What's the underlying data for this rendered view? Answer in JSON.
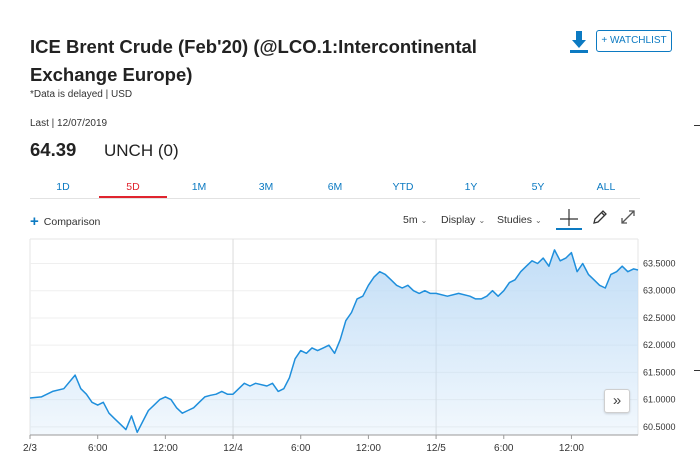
{
  "header": {
    "title": "ICE Brent Crude (Feb'20) (@LCO.1:Intercontinental Exchange Europe)",
    "delayed_note": "*Data is delayed | USD",
    "last_label": "Last | 12/07/2019",
    "last_value": "64.39",
    "change": "UNCH (0)",
    "watchlist_label": "+ WATCHLIST",
    "download_icon": "download-icon"
  },
  "tabs": [
    {
      "label": "1D",
      "active": false
    },
    {
      "label": "5D",
      "active": true
    },
    {
      "label": "1M",
      "active": false
    },
    {
      "label": "3M",
      "active": false
    },
    {
      "label": "6M",
      "active": false
    },
    {
      "label": "YTD",
      "active": false
    },
    {
      "label": "1Y",
      "active": false
    },
    {
      "label": "5Y",
      "active": false
    },
    {
      "label": "ALL",
      "active": false
    }
  ],
  "toolbar": {
    "comparison_label": "Comparison",
    "interval_label": "5m",
    "display_label": "Display",
    "studies_label": "Studies",
    "icons": [
      "crosshair-icon",
      "pencil-icon",
      "expand-icon"
    ]
  },
  "chart_data": {
    "type": "area",
    "title": "",
    "xlabel": "",
    "ylabel": "",
    "ylim": [
      60.35,
      63.95
    ],
    "y_ticks": [
      "63.5000",
      "63.0000",
      "62.5000",
      "62.0000",
      "61.5000",
      "61.0000",
      "60.5000"
    ],
    "y_tick_values": [
      63.5,
      63.0,
      62.5,
      62.0,
      61.5,
      61.0,
      60.5
    ],
    "x_ticks": [
      "2/3",
      "6:00",
      "12:00",
      "12/4",
      "6:00",
      "12:00",
      "12/5",
      "6:00",
      "12:00"
    ],
    "x_tick_positions": [
      0,
      6,
      12,
      18,
      24,
      30,
      36,
      42,
      48
    ],
    "day_dividers": [
      18,
      36
    ],
    "xlim": [
      0,
      53.9
    ],
    "grid": true,
    "series": [
      {
        "color": "#1f8fdc",
        "fill": "#bfdcf6",
        "points": [
          [
            0,
            61.03
          ],
          [
            1,
            61.05
          ],
          [
            2,
            61.15
          ],
          [
            3,
            61.2
          ],
          [
            4,
            61.45
          ],
          [
            4.5,
            61.2
          ],
          [
            5,
            61.1
          ],
          [
            5.5,
            60.95
          ],
          [
            6,
            60.9
          ],
          [
            6.5,
            60.95
          ],
          [
            7,
            60.75
          ],
          [
            7.5,
            60.65
          ],
          [
            8,
            60.55
          ],
          [
            8.5,
            60.45
          ],
          [
            9,
            60.7
          ],
          [
            9.5,
            60.4
          ],
          [
            10,
            60.6
          ],
          [
            10.5,
            60.8
          ],
          [
            11,
            60.9
          ],
          [
            11.5,
            61.0
          ],
          [
            12,
            61.05
          ],
          [
            12.5,
            61.0
          ],
          [
            13,
            60.85
          ],
          [
            13.5,
            60.75
          ],
          [
            14,
            60.8
          ],
          [
            14.5,
            60.85
          ],
          [
            15,
            60.95
          ],
          [
            15.5,
            61.05
          ],
          [
            16,
            61.08
          ],
          [
            16.5,
            61.1
          ],
          [
            17,
            61.15
          ],
          [
            17.5,
            61.1
          ],
          [
            18,
            61.1
          ],
          [
            18.5,
            61.2
          ],
          [
            19,
            61.3
          ],
          [
            19.5,
            61.25
          ],
          [
            20,
            61.3
          ],
          [
            21,
            61.25
          ],
          [
            21.5,
            61.3
          ],
          [
            22,
            61.15
          ],
          [
            22.5,
            61.2
          ],
          [
            23,
            61.4
          ],
          [
            23.5,
            61.75
          ],
          [
            24,
            61.9
          ],
          [
            24.5,
            61.85
          ],
          [
            25,
            61.95
          ],
          [
            25.5,
            61.9
          ],
          [
            26,
            61.95
          ],
          [
            26.5,
            62.0
          ],
          [
            27,
            61.85
          ],
          [
            27.5,
            62.1
          ],
          [
            28,
            62.45
          ],
          [
            28.5,
            62.6
          ],
          [
            29,
            62.85
          ],
          [
            29.5,
            62.9
          ],
          [
            30,
            63.1
          ],
          [
            30.5,
            63.25
          ],
          [
            31,
            63.35
          ],
          [
            31.5,
            63.3
          ],
          [
            32,
            63.2
          ],
          [
            32.5,
            63.1
          ],
          [
            33,
            63.05
          ],
          [
            33.5,
            63.1
          ],
          [
            34,
            63.0
          ],
          [
            34.5,
            62.95
          ],
          [
            35,
            63.0
          ],
          [
            35.5,
            62.95
          ],
          [
            36,
            62.95
          ],
          [
            37,
            62.9
          ],
          [
            38,
            62.95
          ],
          [
            39,
            62.9
          ],
          [
            39.5,
            62.85
          ],
          [
            40,
            62.85
          ],
          [
            40.5,
            62.9
          ],
          [
            41,
            63.0
          ],
          [
            41.5,
            62.9
          ],
          [
            42,
            63.0
          ],
          [
            42.5,
            63.15
          ],
          [
            43,
            63.2
          ],
          [
            43.5,
            63.35
          ],
          [
            44,
            63.45
          ],
          [
            44.5,
            63.55
          ],
          [
            45,
            63.5
          ],
          [
            45.5,
            63.6
          ],
          [
            46,
            63.45
          ],
          [
            46.5,
            63.75
          ],
          [
            47,
            63.55
          ],
          [
            47.5,
            63.6
          ],
          [
            48,
            63.7
          ],
          [
            48.5,
            63.35
          ],
          [
            49,
            63.5
          ],
          [
            49.5,
            63.3
          ],
          [
            50,
            63.2
          ],
          [
            50.5,
            63.1
          ],
          [
            51,
            63.05
          ],
          [
            51.5,
            63.3
          ],
          [
            52,
            63.35
          ],
          [
            52.5,
            63.45
          ],
          [
            53,
            63.35
          ],
          [
            53.5,
            63.4
          ],
          [
            53.9,
            63.38
          ]
        ]
      }
    ]
  }
}
